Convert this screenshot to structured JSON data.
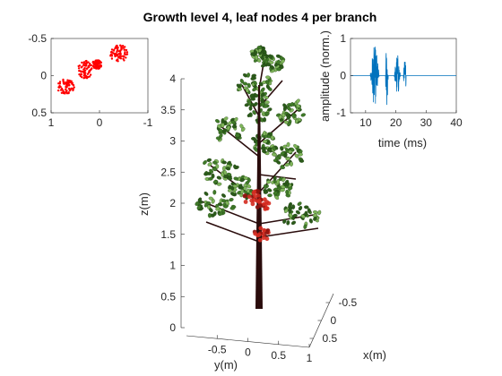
{
  "figure": {
    "title": "Growth level 4, leaf nodes 4 per branch",
    "colors": {
      "trunk": "#2a0c0c",
      "leaf": "#3f7a28",
      "leaf_dark": "#2b5a1a",
      "leaf_light": "#7fb55a",
      "fruit": "#d42a1f",
      "fruit_dark": "#8f1410",
      "signal": "#0072bd",
      "scatter": "#ff0000",
      "axis": "#262626"
    }
  },
  "chart_data": [
    {
      "type": "scatter",
      "name": "top-view",
      "title": "",
      "xlabel": "",
      "ylabel": "",
      "xlim": [
        1,
        -1
      ],
      "ylim": [
        -0.5,
        0.5
      ],
      "y_reversed": true,
      "x_ticks": [
        "1",
        "0",
        "-1"
      ],
      "y_ticks": [
        "-0.5",
        "0",
        "0.5"
      ],
      "clusters": [
        {
          "cx": 0.7,
          "cy": 0.15,
          "rx": 0.18,
          "ry": 0.1
        },
        {
          "cx": 0.3,
          "cy": -0.08,
          "rx": 0.15,
          "ry": 0.12
        },
        {
          "cx": -0.4,
          "cy": -0.3,
          "rx": 0.18,
          "ry": 0.12
        },
        {
          "cx": 0.05,
          "cy": -0.15,
          "rx": 0.1,
          "ry": 0.06
        }
      ]
    },
    {
      "type": "line",
      "name": "echo-signal",
      "title": "",
      "xlabel": "time (ms)",
      "ylabel": "amplitude (norm.)",
      "xlim": [
        5,
        40
      ],
      "ylim": [
        -1,
        1
      ],
      "x_ticks": [
        "10",
        "20",
        "30",
        "40"
      ],
      "y_ticks": [
        "-1",
        "0",
        "1"
      ],
      "bursts": [
        {
          "start": 11.5,
          "end": 14.5,
          "peak": 0.8
        },
        {
          "start": 16.5,
          "end": 17.5,
          "peak": 0.9
        },
        {
          "start": 19.5,
          "end": 21.5,
          "peak": 0.6
        },
        {
          "start": 22.5,
          "end": 23.5,
          "peak": 0.5
        }
      ]
    },
    {
      "type": "scatter3d",
      "name": "tree-model",
      "title": "Growth level 4, leaf nodes 4 per branch",
      "xlabel": "x(m)",
      "ylabel": "y(m)",
      "zlabel": "z(m)",
      "xlim": [
        -0.5,
        0.5
      ],
      "ylim": [
        -1,
        1
      ],
      "zlim": [
        0,
        4
      ],
      "x_ticks": [
        "-0.5",
        "0",
        "0.5"
      ],
      "y_ticks": [
        "-0.5",
        "0",
        "0.5",
        "1"
      ],
      "z_ticks": [
        "0",
        "0.5",
        "1",
        "1.5",
        "2",
        "2.5",
        "3",
        "3.5",
        "4"
      ],
      "trunk_height": 3.9,
      "fruit_height": [
        1.5,
        2.1
      ]
    }
  ]
}
